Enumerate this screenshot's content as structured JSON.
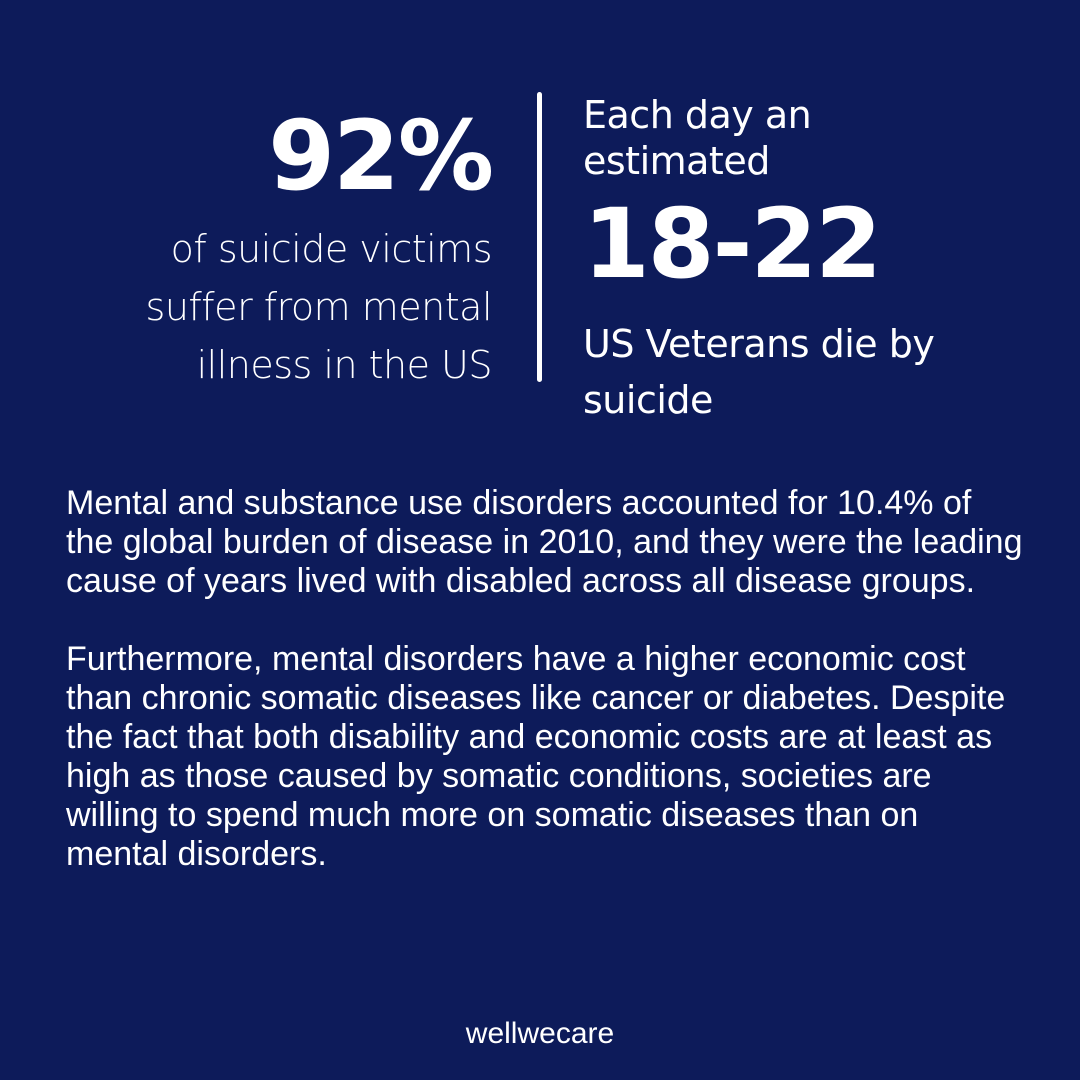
{
  "stats": {
    "left": {
      "number": "92%",
      "caption": "of suicide victims suffer from mental illness in the US"
    },
    "right": {
      "lead": "Each day an estimated",
      "number": "18-22",
      "caption": "US Veterans die by suicide"
    }
  },
  "body": {
    "paragraph_1": "Mental and substance use disorders accounted for 10.4% of the global burden of disease in 2010, and they were the leading cause of years lived with disabled across all disease groups.",
    "paragraph_2": "Furthermore, mental disorders have a higher economic cost than chronic somatic diseases like cancer or diabetes. Despite the fact that both disability and economic costs are at least as high as those caused by somatic conditions, societies are willing to spend much more on somatic diseases than on mental disorders."
  },
  "brand": {
    "name": "wellwecare"
  },
  "colors": {
    "background": "#0d1b5a",
    "text": "#ffffff"
  }
}
